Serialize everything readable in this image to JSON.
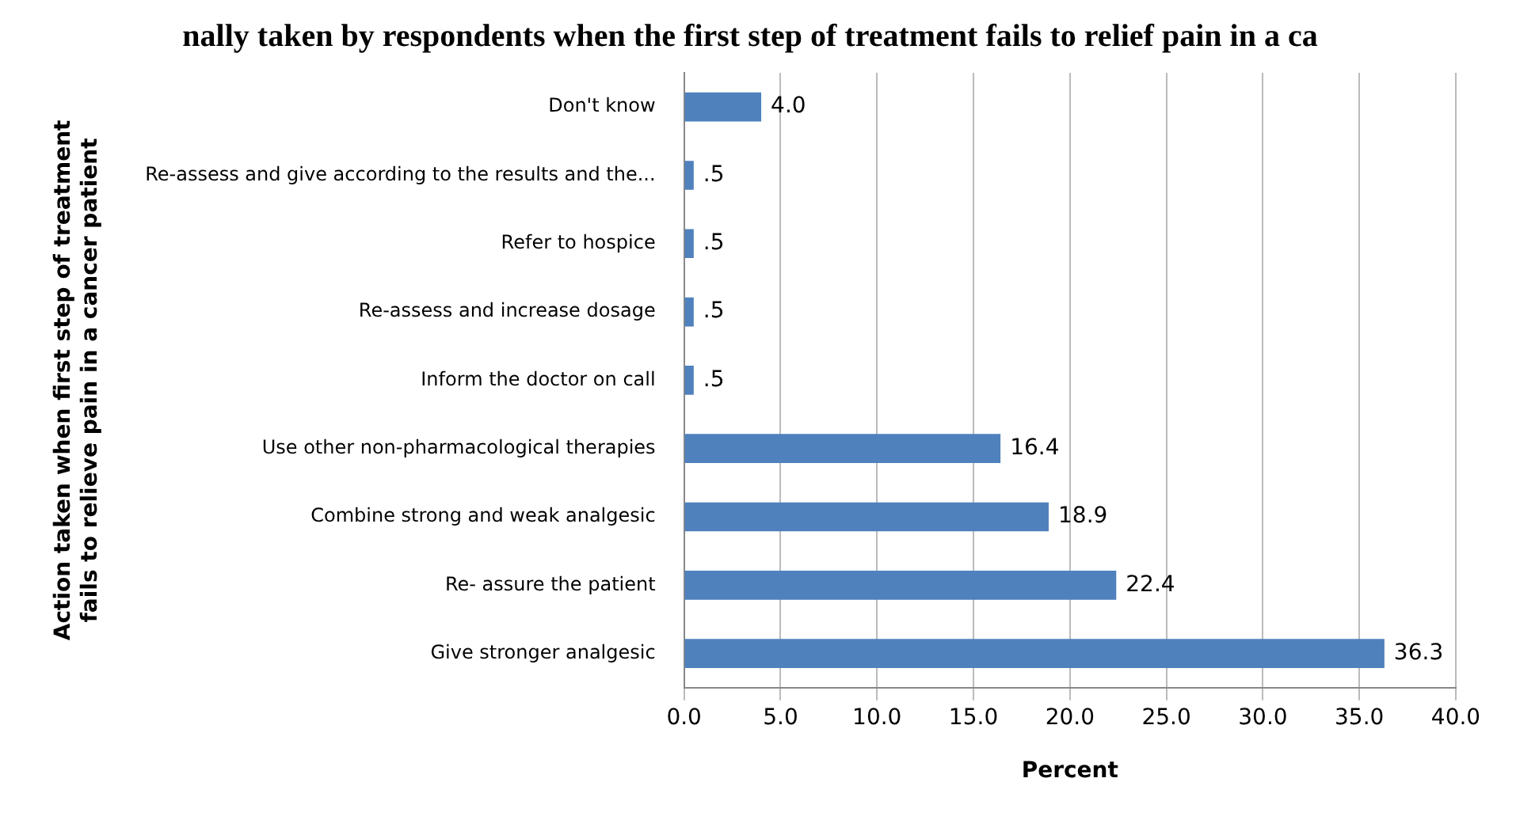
{
  "chart_data": {
    "type": "bar",
    "orientation": "horizontal",
    "title": "nally taken by respondents when the first step of treatment fails to relief pain in a ca",
    "xlabel": "Percent",
    "ylabel": "Action taken when first step of treatment fails to relieve pain in a cancer patient",
    "categories": [
      "Don't know",
      "Re-assess and give according to the results and the...",
      "Refer to hospice",
      "Re-assess and increase dosage",
      "Inform the doctor on call",
      "Use other non-pharmacological therapies",
      "Combine strong and weak analgesic",
      "Re- assure the patient",
      "Give stronger analgesic"
    ],
    "values": [
      4.0,
      0.5,
      0.5,
      0.5,
      0.5,
      16.4,
      18.9,
      22.4,
      36.3
    ],
    "value_labels": [
      "4.0",
      ".5",
      ".5",
      ".5",
      ".5",
      "16.4",
      "18.9",
      "22.4",
      "36.3"
    ],
    "color": "#4f81bd",
    "xlim": [
      0,
      40
    ],
    "xticks": [
      {
        "value": 0,
        "label": "0.0"
      },
      {
        "value": 5,
        "label": "5.0"
      },
      {
        "value": 10,
        "label": "10.0"
      },
      {
        "value": 15,
        "label": "15.0"
      },
      {
        "value": 20,
        "label": "20.0"
      },
      {
        "value": 25,
        "label": "25.0"
      },
      {
        "value": 30,
        "label": "30.0"
      },
      {
        "value": 35,
        "label": "35.0"
      },
      {
        "value": 40,
        "label": "40.0"
      }
    ],
    "grid": "x"
  }
}
